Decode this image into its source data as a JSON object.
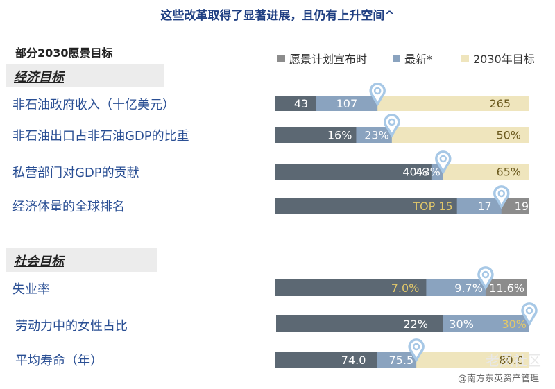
{
  "header": {
    "title": "这些改革取得了显著进展，且仍有上升空间^",
    "subtitle": "部分2030愿景目标"
  },
  "colors": {
    "announce": "#5c6873",
    "latest": "#8aa3bf",
    "target": "#efe5bd",
    "label": "#2a4f94",
    "pin": "#a7c8e6"
  },
  "legend": [
    {
      "label": "愿景计划宣布时",
      "color": "#8c8c8c"
    },
    {
      "label": "最新*",
      "color": "#8aa3bf"
    },
    {
      "label": "2030年目标",
      "color": "#efe5bd"
    }
  ],
  "sections": [
    {
      "label": "经济目标"
    },
    {
      "label": "社会目标"
    }
  ],
  "chart_data": {
    "type": "bar",
    "title": "这些改革取得了显著进展，且仍有上升空间^",
    "subtitle": "部分2030愿景目标",
    "series_names": [
      "愿景计划宣布时",
      "最新*",
      "2030年目标"
    ],
    "rows": [
      {
        "label": "非石油政府收入（十亿美元）",
        "announce": 43,
        "latest": 107,
        "target": 265,
        "announce_label": "43",
        "latest_label": "107",
        "target_label": "265"
      },
      {
        "label": "非石油出口占非石油GDP的比重",
        "announce": 16,
        "latest": 23,
        "target": 50,
        "announce_label": "16%",
        "latest_label": "23%",
        "target_label": "50%"
      },
      {
        "label": "私营部门对GDP的贡献",
        "announce": 40,
        "latest": 43,
        "target": 65,
        "announce_label": "40%",
        "latest_label": "43%",
        "target_label": "65%"
      },
      {
        "label": "经济体量的全球排名",
        "announce": 19,
        "latest": 17,
        "target": 15,
        "announce_label": "19",
        "latest_label": "17",
        "target_label": "TOP 15"
      },
      {
        "label": "失业率",
        "announce": 11.6,
        "latest": 9.7,
        "target": 7.0,
        "announce_label": "11.6%",
        "latest_label": "9.7%",
        "target_label": "7.0%"
      },
      {
        "label": "劳动力中的女性占比",
        "announce": 22,
        "latest": 30,
        "target": 30,
        "announce_label": "22%",
        "latest_label": "30%",
        "target_label": "30%"
      },
      {
        "label": "平均寿命（年）",
        "announce": 74.0,
        "latest": 75.5,
        "target": 80.0,
        "announce_label": "74.0",
        "latest_label": "75.5",
        "target_label": "80.0"
      }
    ]
  },
  "watermark": {
    "main": "老凤社区",
    "sub": "@南方东英资产管理"
  }
}
